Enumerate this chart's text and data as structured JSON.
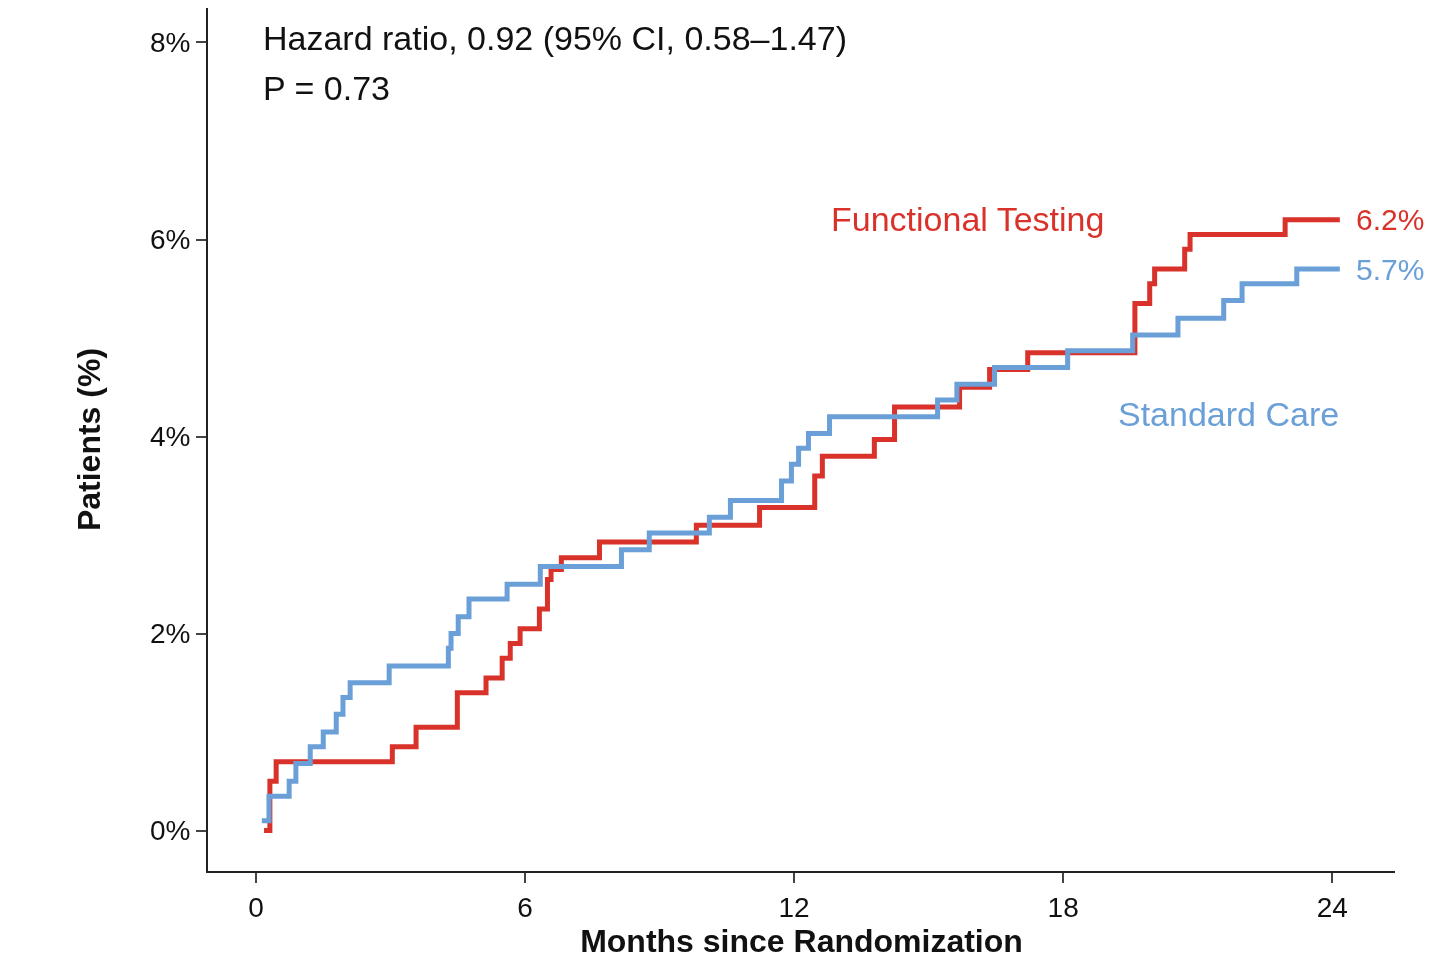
{
  "chart_data": {
    "type": "step",
    "xlabel": "Months since Randomization",
    "ylabel": "Patients (%)",
    "xlim": [
      -1.07,
      25.4
    ],
    "xticks": [
      0,
      6,
      12,
      18,
      24
    ],
    "ylim": [
      -0.41,
      8.35
    ],
    "yticks": [
      {
        "value": 0,
        "label": "0%"
      },
      {
        "value": 2,
        "label": "2%"
      },
      {
        "value": 4,
        "label": "4%"
      },
      {
        "value": 6,
        "label": "6%"
      },
      {
        "value": 8,
        "label": "8%"
      }
    ],
    "grid": false,
    "legend": false,
    "marker": "none",
    "line_style": "solid",
    "series": [
      {
        "name": "Functional Testing",
        "color": "#d8322a",
        "x": [
          0.18,
          0.31,
          0.45,
          3.04,
          3.57,
          4.49,
          5.13,
          5.49,
          5.67,
          5.89,
          6.32,
          6.5,
          6.58,
          6.81,
          7.66,
          9.82,
          11.23,
          12.46,
          12.63,
          13.79,
          14.24,
          15.69,
          16.36,
          17.21,
          19.6,
          19.93,
          20.04,
          20.71,
          20.83,
          22.95,
          24.17
        ],
        "values": [
          0,
          0.5,
          0.7,
          0.85,
          1.05,
          1.4,
          1.55,
          1.75,
          1.9,
          2.05,
          2.25,
          2.55,
          2.65,
          2.77,
          2.93,
          3.1,
          3.28,
          3.6,
          3.8,
          3.97,
          4.3,
          4.5,
          4.68,
          4.85,
          5.35,
          5.55,
          5.7,
          5.9,
          6.05,
          6.2,
          6.2
        ]
      },
      {
        "name": "Standard Care",
        "color": "#6a9fd8",
        "x": [
          0.13,
          0.29,
          0.74,
          0.89,
          1.21,
          1.5,
          1.79,
          1.94,
          2.1,
          2.97,
          4.29,
          4.35,
          4.51,
          4.75,
          5.6,
          6.34,
          8.15,
          8.77,
          10.11,
          10.58,
          11.72,
          11.94,
          12.1,
          12.32,
          12.79,
          15.2,
          15.63,
          16.47,
          18.1,
          19.55,
          20.56,
          21.58,
          21.99,
          23.21,
          24.17
        ],
        "values": [
          0.1,
          0.35,
          0.5,
          0.68,
          0.85,
          1.0,
          1.18,
          1.35,
          1.5,
          1.67,
          1.85,
          2.0,
          2.17,
          2.35,
          2.5,
          2.68,
          2.85,
          3.02,
          3.18,
          3.35,
          3.55,
          3.72,
          3.88,
          4.03,
          4.2,
          4.37,
          4.53,
          4.7,
          4.87,
          5.03,
          5.2,
          5.38,
          5.55,
          5.7,
          5.7
        ]
      }
    ],
    "annotations": [
      "Hazard ratio, 0.92 (95% CI, 0.58–1.47)",
      "P = 0.73",
      {
        "text": "6.2%",
        "x": 24.17,
        "y": 6.2
      },
      {
        "text": "5.7%",
        "x": 24.17,
        "y": 5.7
      }
    ]
  }
}
